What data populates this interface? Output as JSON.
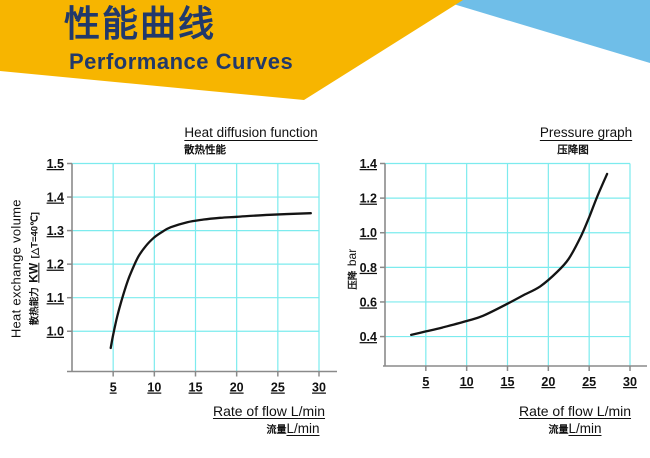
{
  "banner": {
    "title_zh": "性能曲线",
    "title_en": "Performance Curves"
  },
  "colors": {
    "banner_yellow": "#F7B500",
    "banner_sky_blue": "#6FBEE8",
    "banner_text_navy": "#21396B",
    "grid_cyan": "#7CEBEE",
    "axis_gray": "#8A8A8A",
    "curve_black": "#141414"
  },
  "chart_data": [
    {
      "id": "heat-diffusion",
      "type": "line",
      "title": "Heat diffusion function",
      "subtitle_zh": "散热性能",
      "xlabel": "Rate of flow L/min",
      "xlabel_zh": "流量",
      "xlabel_zh_unit": "L/min",
      "ylabel": "Heat exchange volume",
      "ylabel_zh": "散热能力",
      "ylabel_zh_unit": "KW",
      "ylabel_zh_suffix": "[△T=40℃]",
      "xlim": [
        0,
        30
      ],
      "ylim": [
        0.88,
        1.5
      ],
      "xticks": [
        5,
        10,
        15,
        20,
        25,
        30
      ],
      "xtick_labels": [
        "5",
        "10",
        "15",
        "20",
        "25",
        "30"
      ],
      "yticks": [
        1.0,
        1.1,
        1.2,
        1.3,
        1.4,
        1.5
      ],
      "ytick_labels": [
        "1.0",
        "1.1",
        "1.2",
        "1.3",
        "1.4",
        "1.5"
      ],
      "grid": true,
      "legend": false,
      "series": [
        {
          "name": "heat-exchange-curve",
          "points": [
            [
              4.7,
              0.95
            ],
            [
              5,
              0.99
            ],
            [
              5.5,
              1.045
            ],
            [
              6,
              1.09
            ],
            [
              6.5,
              1.13
            ],
            [
              7,
              1.165
            ],
            [
              8,
              1.22
            ],
            [
              9,
              1.255
            ],
            [
              10,
              1.28
            ],
            [
              11,
              1.297
            ],
            [
              12,
              1.31
            ],
            [
              14,
              1.325
            ],
            [
              16,
              1.333
            ],
            [
              18,
              1.338
            ],
            [
              20,
              1.341
            ],
            [
              24,
              1.347
            ],
            [
              29,
              1.352
            ]
          ]
        }
      ]
    },
    {
      "id": "pressure-graph",
      "type": "line",
      "title": "Pressure graph",
      "subtitle_zh": "压降图",
      "xlabel": "Rate of flow L/min",
      "xlabel_zh": "流量",
      "xlabel_zh_unit": "L/min",
      "ylabel_zh": "压降",
      "ylabel_unit": "bar",
      "xlim": [
        0,
        30
      ],
      "ylim": [
        0.23,
        1.4
      ],
      "xticks": [
        5,
        10,
        15,
        20,
        25,
        30
      ],
      "xtick_labels": [
        "5",
        "10",
        "15",
        "20",
        "25",
        "30"
      ],
      "yticks": [
        0.4,
        0.6,
        0.8,
        1.0,
        1.2,
        1.4
      ],
      "ytick_labels": [
        "0.4",
        "0.6",
        "0.8",
        "1.0",
        "1.2",
        "1.4"
      ],
      "grid": true,
      "legend": false,
      "series": [
        {
          "name": "pressure-drop-curve",
          "points": [
            [
              3.2,
              0.41
            ],
            [
              5,
              0.43
            ],
            [
              7,
              0.452
            ],
            [
              10,
              0.49
            ],
            [
              12,
              0.52
            ],
            [
              15,
              0.59
            ],
            [
              17,
              0.64
            ],
            [
              19,
              0.69
            ],
            [
              21,
              0.77
            ],
            [
              22.5,
              0.85
            ],
            [
              24,
              0.98
            ],
            [
              25,
              1.09
            ],
            [
              26,
              1.21
            ],
            [
              27.2,
              1.34
            ]
          ]
        }
      ]
    }
  ]
}
